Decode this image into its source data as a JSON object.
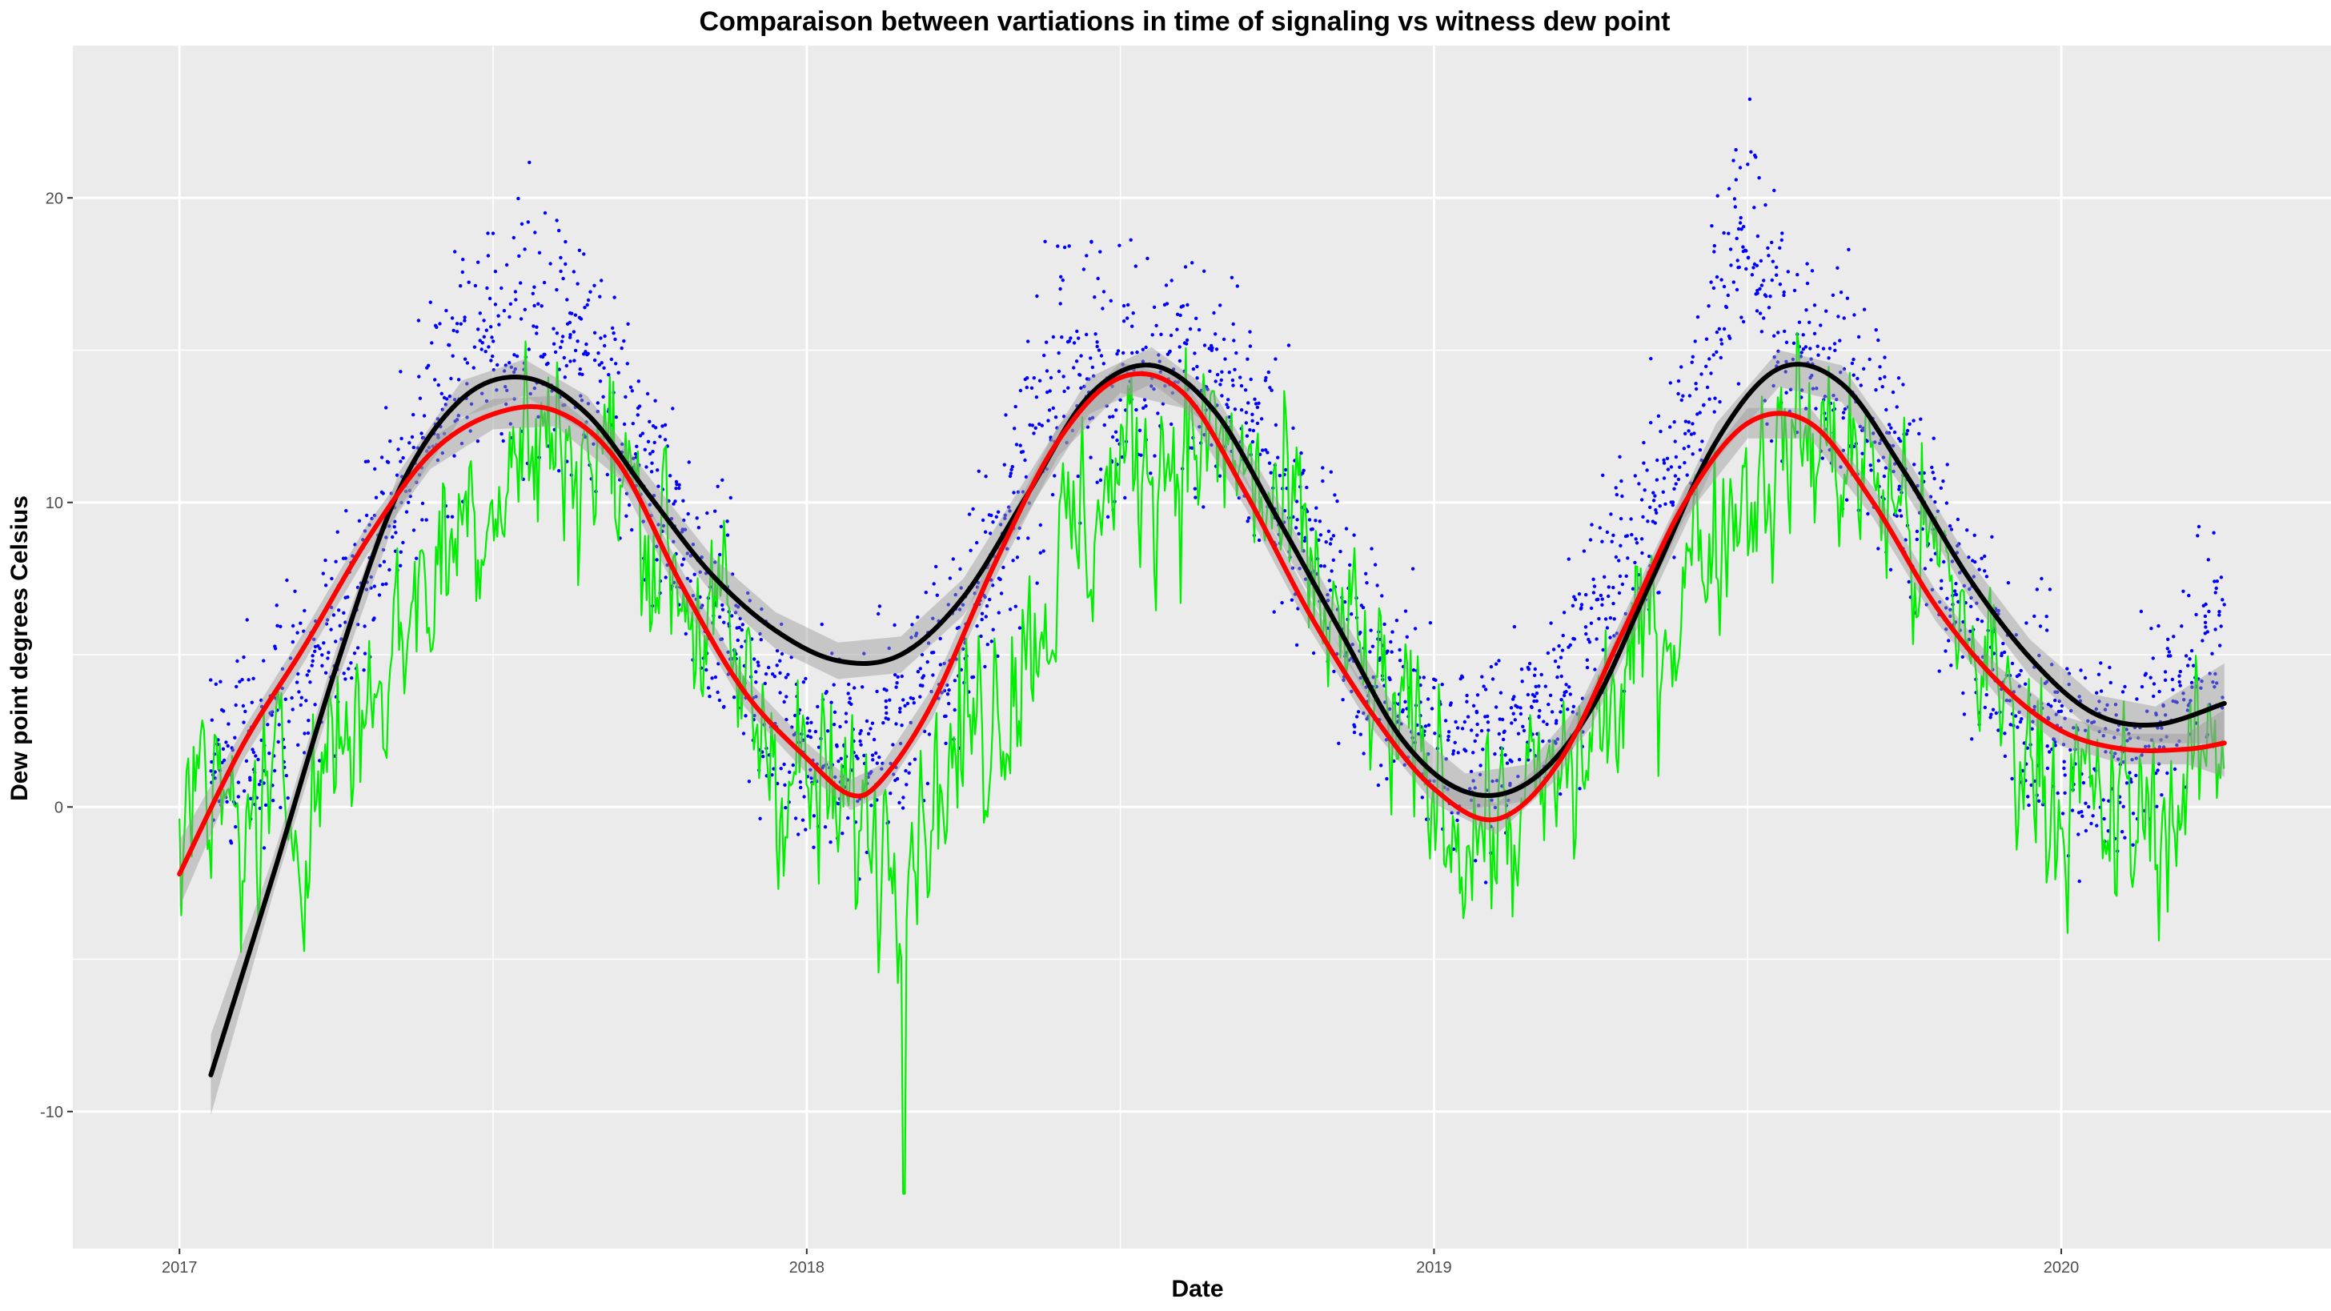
{
  "chart_data": {
    "type": "line",
    "title": "Comparaison between vartiations in time of signaling vs witness dew point",
    "xlabel": "Date",
    "ylabel": "Dew point degrees Celsius",
    "x_ticks": [
      {
        "label": "2017",
        "value": 2017.0
      },
      {
        "label": "2018",
        "value": 2018.0
      },
      {
        "label": "2019",
        "value": 2019.0
      },
      {
        "label": "2020",
        "value": 2020.0
      }
    ],
    "y_ticks": [
      -10,
      0,
      10,
      20
    ],
    "xlim": [
      2016.83,
      2020.43
    ],
    "ylim": [
      -14.5,
      25
    ],
    "grid": true,
    "background": "#ebebeb",
    "gridline_color": "#ffffff",
    "colors": {
      "signaling_points": "#0000ff",
      "witness_line": "#00ee00",
      "signaling_smooth": "#000000",
      "witness_smooth": "#ff0000",
      "confidence_band": "#999999"
    },
    "series": [
      {
        "kind": "points",
        "x_range": [
          2017.05,
          2020.26
        ],
        "cycle": {
          "mean": 8.3,
          "amplitude": 6.5,
          "peak": 0.56,
          "spread": 3.2,
          "step": 0.0022
        },
        "bursts": [
          {
            "x": 2017.55,
            "width": 0.12,
            "level": 15.5
          },
          {
            "x": 2018.45,
            "width": 0.1,
            "level": 14.5
          },
          {
            "x": 2019.49,
            "width": 0.05,
            "level": 19.0
          }
        ]
      },
      {
        "kind": "line",
        "x_range": [
          2017.0,
          2020.26
        ],
        "cycle": {
          "mean": 5.7,
          "amplitude": 6.3,
          "peak": 0.6,
          "noise": 2.6,
          "step": 0.0028
        },
        "extremes": [
          {
            "x": 2018.155,
            "y": -12.7
          }
        ]
      },
      {
        "kind": "smooth",
        "x": [
          2017.05,
          2017.15,
          2017.25,
          2017.35,
          2017.45,
          2017.55,
          2017.65,
          2017.75,
          2017.85,
          2017.95,
          2018.05,
          2018.15,
          2018.25,
          2018.35,
          2018.45,
          2018.55,
          2018.65,
          2018.75,
          2018.85,
          2018.95,
          2019.05,
          2019.15,
          2019.25,
          2019.35,
          2019.45,
          2019.55,
          2019.65,
          2019.75,
          2019.85,
          2019.95,
          2020.05,
          2020.15,
          2020.26
        ],
        "y": [
          -8.8,
          -2.2,
          4.6,
          10.4,
          13.4,
          14.1,
          12.9,
          10.2,
          7.6,
          5.8,
          4.8,
          5.0,
          6.9,
          10.2,
          13.5,
          14.5,
          13.0,
          9.5,
          5.8,
          2.2,
          0.5,
          0.8,
          3.2,
          7.6,
          12.0,
          14.4,
          13.9,
          11.0,
          7.6,
          4.9,
          3.1,
          2.7,
          3.4
        ],
        "band": 0.6
      },
      {
        "kind": "smooth",
        "x": [
          2017.0,
          2017.1,
          2017.2,
          2017.3,
          2017.4,
          2017.5,
          2017.6,
          2017.7,
          2017.8,
          2017.9,
          2018.0,
          2018.07,
          2018.12,
          2018.2,
          2018.3,
          2018.4,
          2018.5,
          2018.6,
          2018.7,
          2018.8,
          2018.9,
          2019.0,
          2019.1,
          2019.2,
          2019.3,
          2019.4,
          2019.5,
          2019.6,
          2019.7,
          2019.8,
          2019.9,
          2020.0,
          2020.1,
          2020.2,
          2020.26
        ],
        "y": [
          -2.2,
          2.0,
          5.3,
          8.8,
          11.6,
          12.9,
          13.0,
          11.3,
          7.3,
          3.8,
          1.6,
          0.4,
          0.9,
          3.4,
          8.0,
          12.0,
          14.1,
          13.6,
          10.3,
          6.4,
          3.1,
          0.6,
          -0.4,
          1.5,
          5.7,
          10.0,
          12.6,
          12.6,
          10.0,
          6.6,
          4.1,
          2.5,
          1.9,
          1.9,
          2.1
        ],
        "band": 0.5
      }
    ]
  }
}
